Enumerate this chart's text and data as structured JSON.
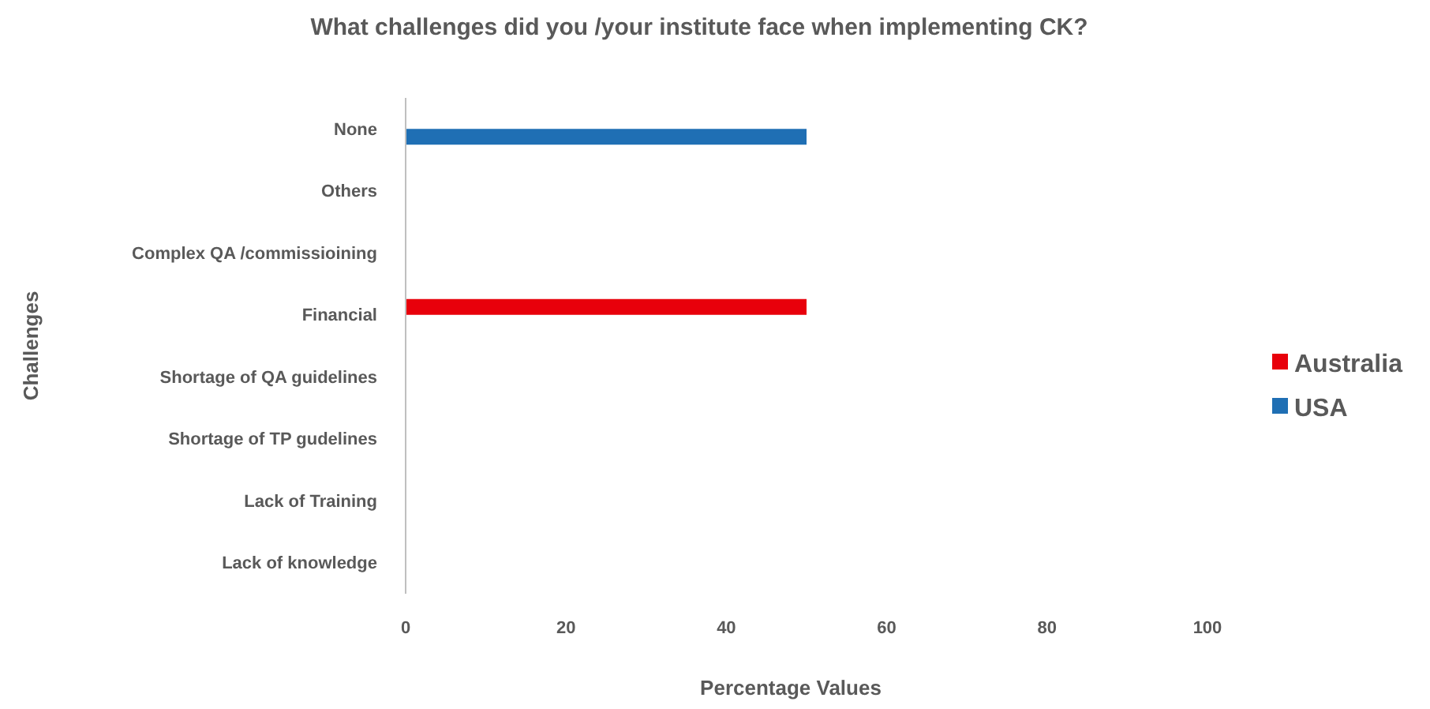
{
  "chart_data": {
    "type": "bar",
    "orientation": "horizontal",
    "title": "What challenges did you /your institute face when implementing CK?",
    "xlabel": "Percentage Values",
    "ylabel": "Challenges",
    "categories": [
      "None",
      "Others",
      "Complex QA /commissioining",
      "Financial",
      "Shortage of QA guidelines",
      "Shortage of TP gudelines",
      "Lack of Training",
      "Lack of knowledge"
    ],
    "series": [
      {
        "name": "Australia",
        "color": "#e8000b",
        "values": [
          0,
          0,
          0,
          50,
          0,
          0,
          0,
          0
        ]
      },
      {
        "name": "USA",
        "color": "#1f6fb4",
        "values": [
          50,
          0,
          0,
          0,
          0,
          0,
          0,
          0
        ]
      }
    ],
    "xlim": [
      0,
      100
    ],
    "xticks": [
      0,
      20,
      40,
      60,
      80,
      100
    ],
    "grid": false,
    "legend": "right"
  }
}
